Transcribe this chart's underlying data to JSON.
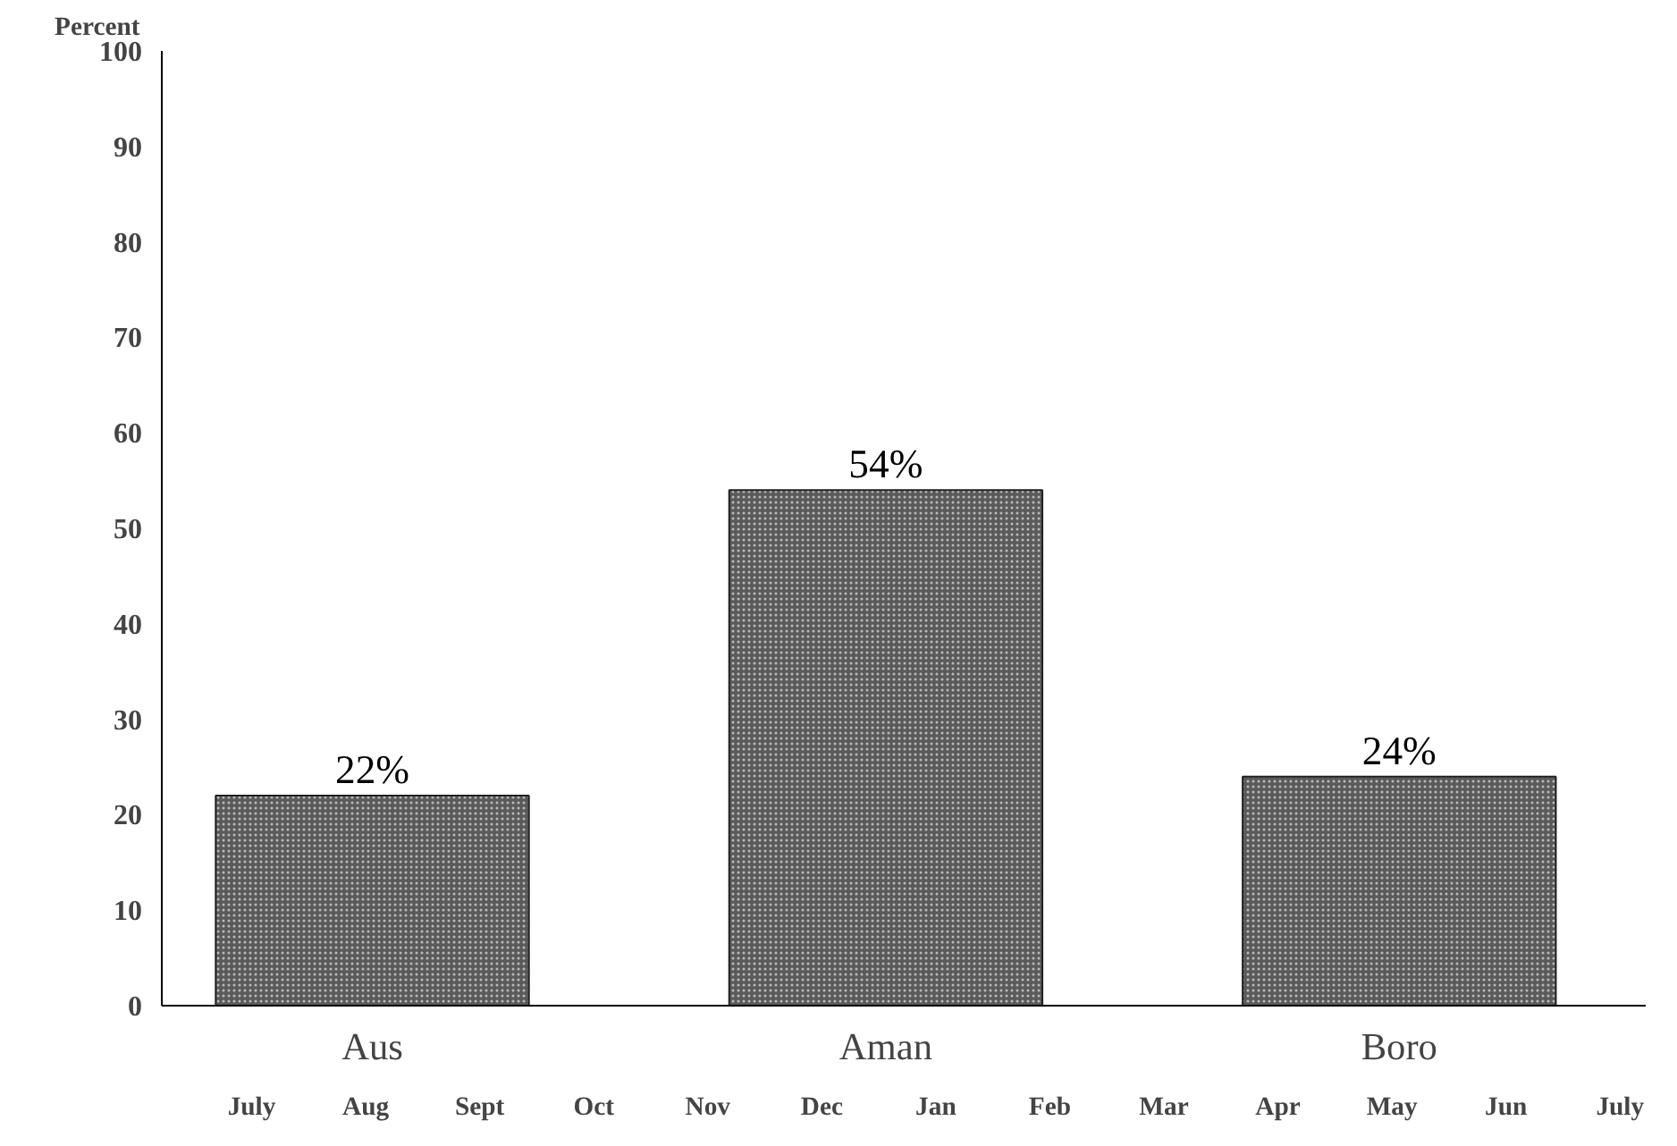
{
  "chart_data": {
    "type": "bar",
    "ylabel": "Percent",
    "categories": [
      "Aus",
      "Aman",
      "Boro"
    ],
    "values": [
      22,
      54,
      24
    ],
    "value_labels": [
      "22%",
      "54%",
      "24%"
    ],
    "color": "#5a5a5a",
    "ylim": [
      0,
      100
    ],
    "yticks": [
      0,
      10,
      20,
      30,
      40,
      50,
      60,
      70,
      80,
      90,
      100
    ],
    "grid": false,
    "annotations": [
      "July",
      "Aug",
      "Sept",
      "Oct",
      "Nov",
      "Dec",
      "Jan",
      "Feb",
      "Mar",
      "Apr",
      "May",
      "Jun",
      "July"
    ]
  }
}
